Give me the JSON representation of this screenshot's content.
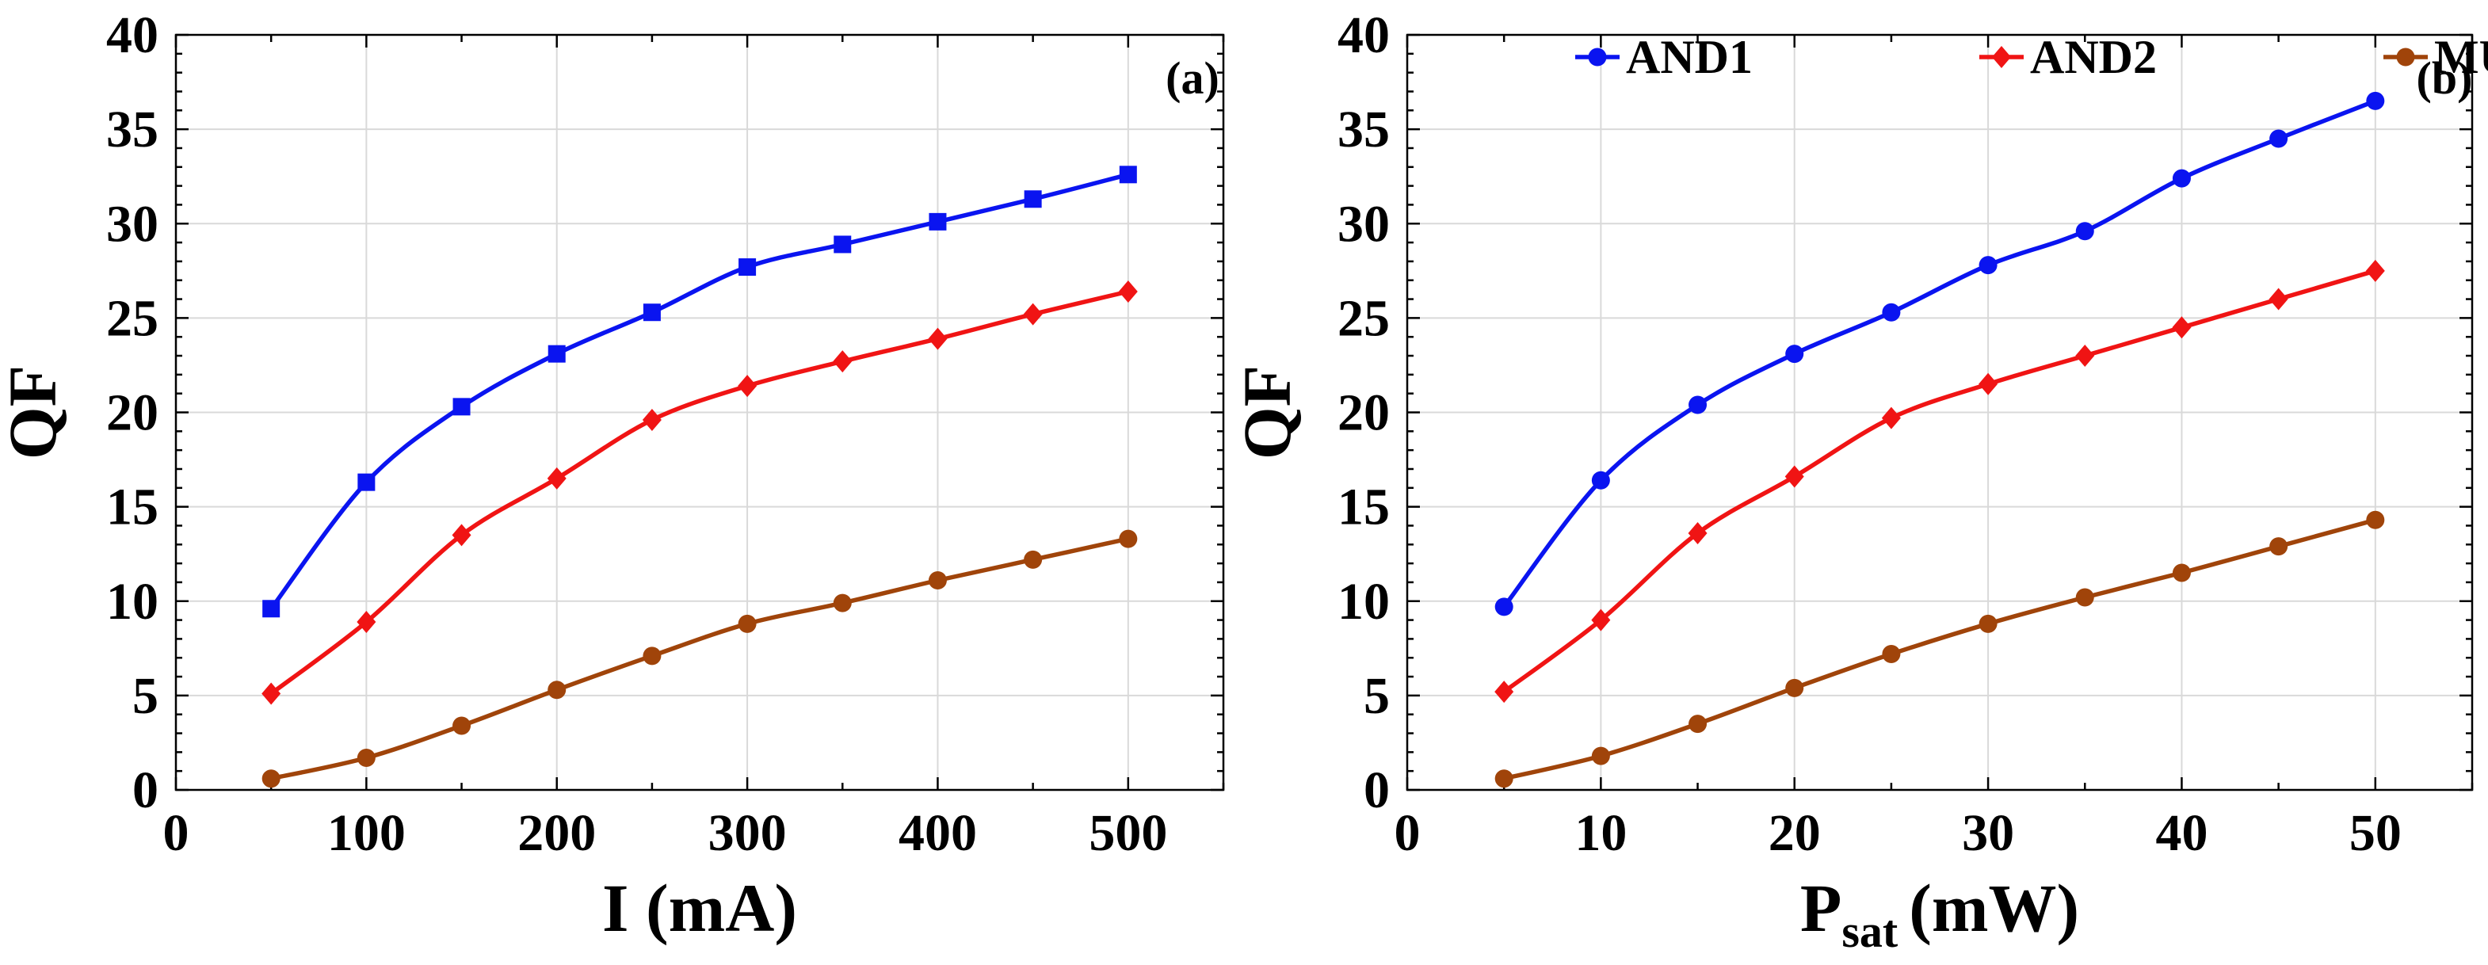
{
  "chart_data": [
    {
      "type": "line",
      "panel_tag": "(a)",
      "xlabel": "I (mA)",
      "ylabel": "QF",
      "xlim": [
        0,
        550
      ],
      "ylim": [
        0,
        40
      ],
      "xticks": [
        0,
        100,
        200,
        300,
        400,
        500
      ],
      "xtick_labels": [
        "0",
        "100",
        "200",
        "300",
        "400",
        "500"
      ],
      "yticks": [
        0,
        5,
        10,
        15,
        20,
        25,
        30,
        35,
        40
      ],
      "ytick_labels": [
        "0",
        "5",
        "10",
        "15",
        "20",
        "25",
        "30",
        "35",
        "40"
      ],
      "grid": true,
      "x": [
        50,
        100,
        150,
        200,
        250,
        300,
        350,
        400,
        450,
        500
      ],
      "series": [
        {
          "name": "AND1",
          "color": "#0a14f0",
          "marker": "square",
          "values": [
            9.6,
            16.3,
            20.3,
            23.1,
            25.3,
            27.7,
            28.9,
            30.1,
            31.3,
            32.6
          ]
        },
        {
          "name": "AND2",
          "color": "#f01414",
          "marker": "diamond",
          "values": [
            5.1,
            8.9,
            13.5,
            16.5,
            19.6,
            21.4,
            22.7,
            23.9,
            25.2,
            26.4
          ]
        },
        {
          "name": "MUX",
          "color": "#a0440a",
          "marker": "circle",
          "values": [
            0.6,
            1.7,
            3.4,
            5.3,
            7.1,
            8.8,
            9.9,
            11.1,
            12.2,
            13.3
          ]
        }
      ]
    },
    {
      "type": "line",
      "panel_tag": "(b)",
      "xlabel_main": "P",
      "xlabel_sub": "sat",
      "xlabel_unit": "(mW)",
      "ylabel": "QF",
      "xlim": [
        0,
        55
      ],
      "ylim": [
        0,
        40
      ],
      "xticks": [
        0,
        10,
        20,
        30,
        40,
        50
      ],
      "xtick_labels": [
        "0",
        "10",
        "20",
        "30",
        "40",
        "50"
      ],
      "yticks": [
        0,
        5,
        10,
        15,
        20,
        25,
        30,
        35,
        40
      ],
      "ytick_labels": [
        "0",
        "5",
        "10",
        "15",
        "20",
        "25",
        "30",
        "35",
        "40"
      ],
      "grid": true,
      "legend": {
        "placement": "top-center",
        "entries": [
          "AND1",
          "AND2",
          "MUX"
        ]
      },
      "x": [
        5,
        10,
        15,
        20,
        25,
        30,
        35,
        40,
        45,
        50
      ],
      "series": [
        {
          "name": "AND1",
          "color": "#0a14f0",
          "marker": "circle",
          "values": [
            9.7,
            16.4,
            20.4,
            23.1,
            25.3,
            27.8,
            29.6,
            32.4,
            34.5,
            36.5
          ]
        },
        {
          "name": "AND2",
          "color": "#f01414",
          "marker": "diamond",
          "values": [
            5.2,
            9.0,
            13.6,
            16.6,
            19.7,
            21.5,
            23.0,
            24.5,
            26.0,
            27.5
          ]
        },
        {
          "name": "MUX",
          "color": "#a0440a",
          "marker": "circle",
          "values": [
            0.6,
            1.8,
            3.5,
            5.4,
            7.2,
            8.8,
            10.2,
            11.5,
            12.9,
            14.3
          ]
        }
      ]
    }
  ]
}
